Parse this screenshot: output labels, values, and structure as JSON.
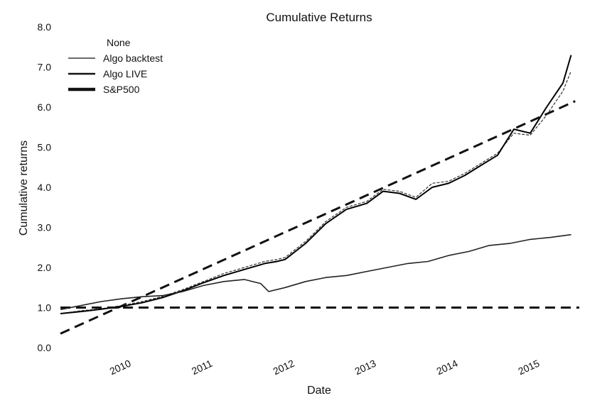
{
  "chart_data": {
    "type": "line",
    "title": "Cumulative Returns",
    "xlabel": "Date",
    "ylabel": "Cumulative returns",
    "xlim": [
      2009.25,
      2015.6
    ],
    "ylim": [
      0.0,
      8.0
    ],
    "yticks": [
      "0.0",
      "1.0",
      "2.0",
      "3.0",
      "4.0",
      "5.0",
      "6.0",
      "7.0",
      "8.0"
    ],
    "xticks": [
      {
        "label": "2010",
        "x": 2010.0
      },
      {
        "label": "2011",
        "x": 2011.0
      },
      {
        "label": "2012",
        "x": 2012.0
      },
      {
        "label": "2013",
        "x": 2013.0
      },
      {
        "label": "2014",
        "x": 2014.0
      },
      {
        "label": "2015",
        "x": 2015.0
      }
    ],
    "grid": false,
    "legend": {
      "title": "None",
      "placement": "top-left",
      "entries": [
        "Algo backtest",
        "Algo LIVE",
        "S&P500"
      ]
    },
    "series": [
      {
        "name": "Algo backtest",
        "color": "#333333",
        "x": [
          2009.25,
          2009.5,
          2009.75,
          2010.0,
          2010.25,
          2010.5,
          2010.75,
          2011.0,
          2011.25,
          2011.5,
          2011.75,
          2011.9,
          2012.0,
          2012.25,
          2012.5,
          2012.75,
          2013.0,
          2013.2,
          2013.4,
          2013.6,
          2013.8,
          2014.0,
          2014.2,
          2014.4,
          2014.6,
          2014.8,
          2015.0,
          2015.2,
          2015.4,
          2015.5
        ],
        "y": [
          0.85,
          0.92,
          0.97,
          1.05,
          1.15,
          1.28,
          1.45,
          1.65,
          1.85,
          2.0,
          2.15,
          2.2,
          2.25,
          2.65,
          3.15,
          3.5,
          3.65,
          3.95,
          3.9,
          3.75,
          4.1,
          4.15,
          4.35,
          4.6,
          4.85,
          5.35,
          5.3,
          5.8,
          6.4,
          6.9
        ]
      },
      {
        "name": "Algo LIVE",
        "color": "#000000",
        "x": [
          2009.25,
          2009.5,
          2009.75,
          2010.0,
          2010.25,
          2010.5,
          2010.75,
          2011.0,
          2011.25,
          2011.5,
          2011.75,
          2011.9,
          2012.0,
          2012.25,
          2012.5,
          2012.75,
          2013.0,
          2013.2,
          2013.4,
          2013.6,
          2013.8,
          2014.0,
          2014.2,
          2014.4,
          2014.6,
          2014.8,
          2015.0,
          2015.2,
          2015.4,
          2015.5
        ],
        "y": [
          0.85,
          0.9,
          0.96,
          1.03,
          1.12,
          1.25,
          1.42,
          1.62,
          1.8,
          1.95,
          2.1,
          2.15,
          2.2,
          2.6,
          3.1,
          3.45,
          3.6,
          3.9,
          3.85,
          3.7,
          4.0,
          4.1,
          4.3,
          4.55,
          4.8,
          5.45,
          5.35,
          6.0,
          6.6,
          7.3
        ]
      },
      {
        "name": "S&P500",
        "color": "#222222",
        "x": [
          2009.25,
          2009.5,
          2009.75,
          2010.0,
          2010.25,
          2010.5,
          2010.75,
          2011.0,
          2011.25,
          2011.5,
          2011.7,
          2011.8,
          2012.0,
          2012.25,
          2012.5,
          2012.75,
          2013.0,
          2013.25,
          2013.5,
          2013.75,
          2014.0,
          2014.25,
          2014.5,
          2014.75,
          2015.0,
          2015.25,
          2015.5
        ],
        "y": [
          0.95,
          1.05,
          1.15,
          1.22,
          1.27,
          1.3,
          1.4,
          1.55,
          1.65,
          1.7,
          1.6,
          1.4,
          1.5,
          1.65,
          1.75,
          1.8,
          1.9,
          2.0,
          2.1,
          2.15,
          2.3,
          2.4,
          2.55,
          2.6,
          2.7,
          2.75,
          2.82
        ]
      }
    ],
    "reference_lines": [
      {
        "style": "dashed",
        "x": [
          2009.25,
          2015.6
        ],
        "y": [
          1.0,
          1.0
        ]
      },
      {
        "style": "dashed",
        "x": [
          2009.25,
          2015.55
        ],
        "y": [
          0.35,
          6.15
        ]
      }
    ]
  }
}
